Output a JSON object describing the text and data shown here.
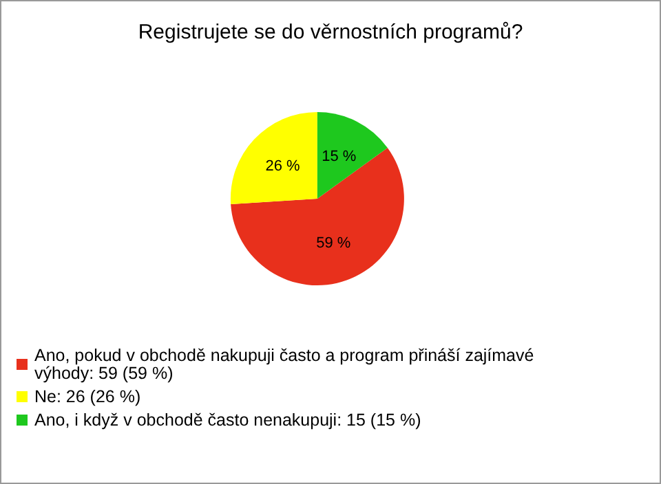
{
  "chart_data": {
    "type": "pie",
    "title": "Registrujete se do věrnostních programů?",
    "categories": [
      "Ano, pokud v obchodě nakupuji často a program přináší zajímavé výhody: 59 (59 %)",
      "Ne: 26 (26 %)",
      "Ano, i když v obchodě často nenakupuji: 15 (15 %)"
    ],
    "values": [
      59,
      26,
      15
    ],
    "colors": [
      "#e8301c",
      "#ffff00",
      "#1ec81e"
    ],
    "value_labels": [
      "59 %",
      "26 %",
      "15 %"
    ],
    "legend": "bottom left"
  }
}
